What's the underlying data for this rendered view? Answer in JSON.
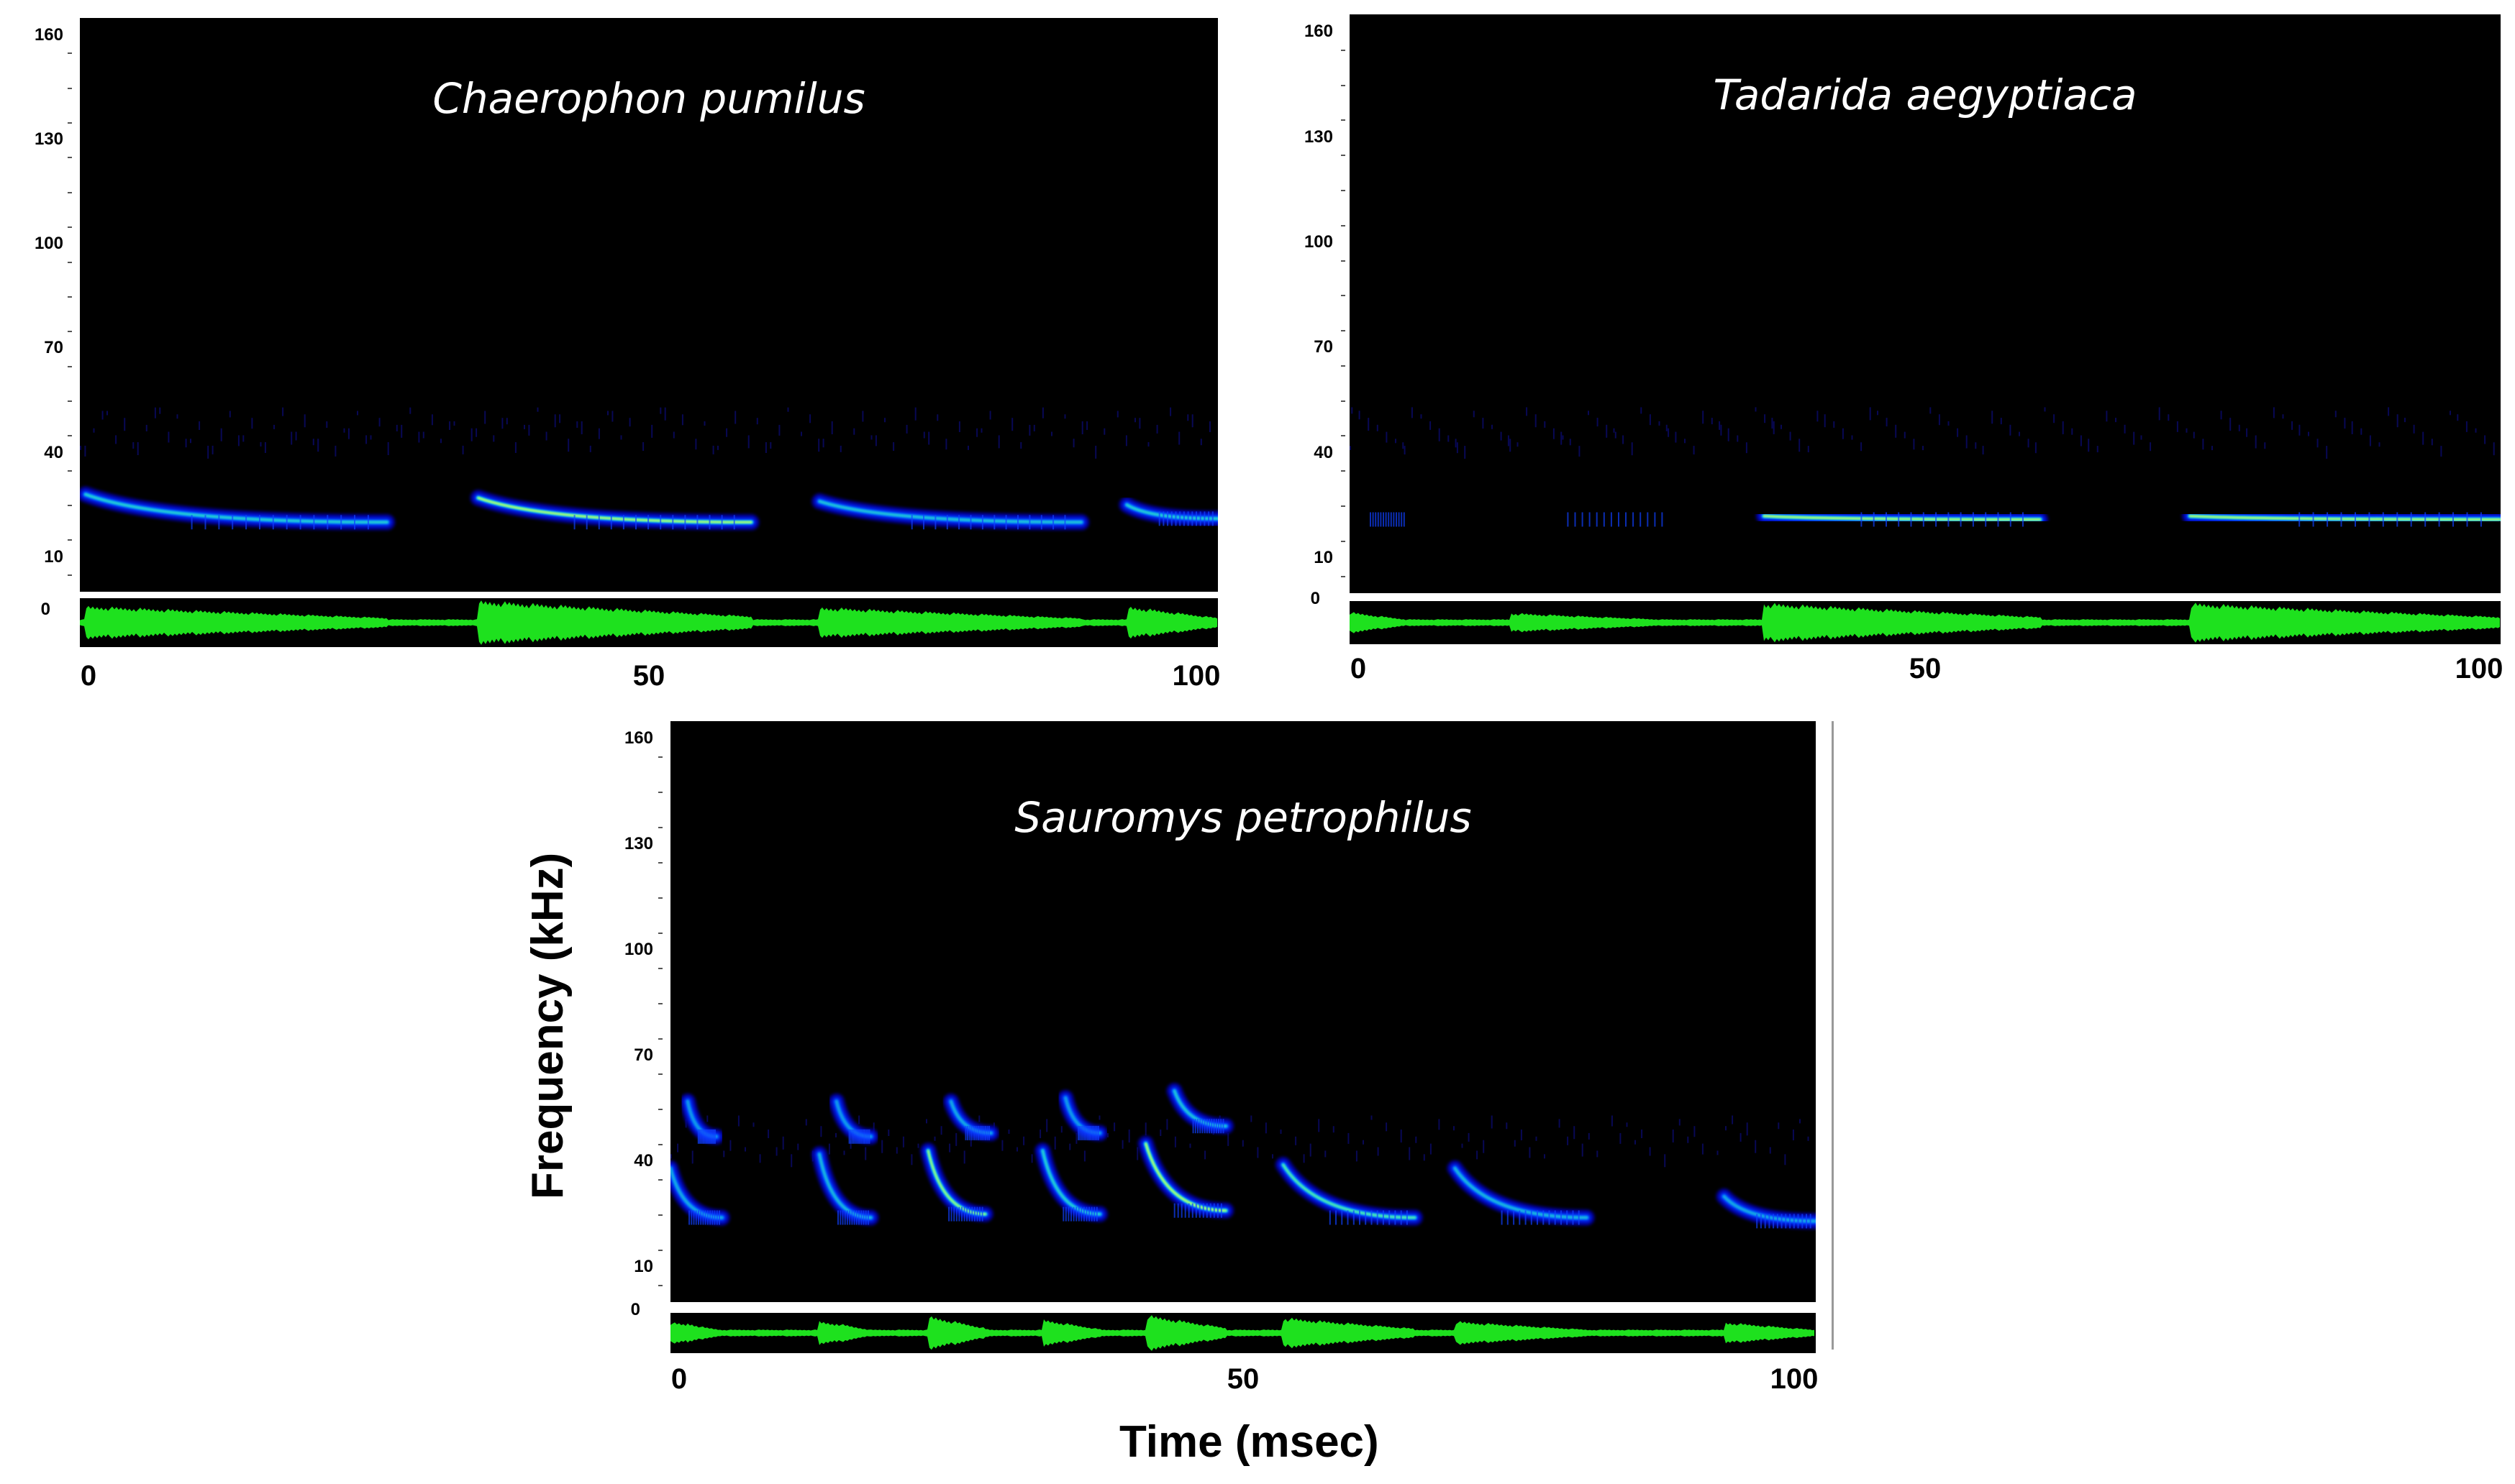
{
  "chart_data": [
    {
      "type": "heatmap",
      "title": "Chaerophon pumilus",
      "xlabel": "",
      "ylabel": "",
      "x_ticks": [
        "0",
        "50",
        "100"
      ],
      "y_ticks": [
        "10",
        "40",
        "70",
        "100",
        "130",
        "160"
      ],
      "y_zero": "0",
      "xlim": [
        0,
        100
      ],
      "ylim": [
        0,
        165
      ],
      "pulses": [
        {
          "start_ms": 0.5,
          "end_ms": 27,
          "f_start_khz": 28,
          "f_end_khz": 20
        },
        {
          "start_ms": 35,
          "end_ms": 59,
          "f_start_khz": 27,
          "f_end_khz": 20
        },
        {
          "start_ms": 65,
          "end_ms": 88,
          "f_start_khz": 26,
          "f_end_khz": 20
        },
        {
          "start_ms": 92,
          "end_ms": 100,
          "f_start_khz": 25,
          "f_end_khz": 21
        }
      ]
    },
    {
      "type": "heatmap",
      "title": "Tadarida aegyptiaca",
      "xlabel": "",
      "ylabel": "",
      "x_ticks": [
        "0",
        "50",
        "100"
      ],
      "y_ticks": [
        "10",
        "40",
        "70",
        "100",
        "130",
        "160"
      ],
      "y_zero": "0",
      "xlim": [
        0,
        100
      ],
      "ylim": [
        0,
        165
      ],
      "pulses": [
        {
          "start_ms": 0,
          "end_ms": 5,
          "f_start_khz": 21,
          "f_end_khz": 21
        },
        {
          "start_ms": 14,
          "end_ms": 28,
          "f_start_khz": 21,
          "f_end_khz": 21
        },
        {
          "start_ms": 36,
          "end_ms": 60,
          "f_start_khz": 22,
          "f_end_khz": 21
        },
        {
          "start_ms": 73,
          "end_ms": 100,
          "f_start_khz": 22,
          "f_end_khz": 21
        }
      ]
    },
    {
      "type": "heatmap",
      "title": "Sauromys petrophilus",
      "xlabel": "Time (msec)",
      "ylabel": "Frequency (kHz)",
      "x_ticks": [
        "0",
        "50",
        "100"
      ],
      "y_ticks": [
        "10",
        "40",
        "70",
        "100",
        "130",
        "160"
      ],
      "y_zero": "0",
      "xlim": [
        0,
        100
      ],
      "ylim": [
        0,
        165
      ],
      "pulses": [
        {
          "start_ms": 0,
          "end_ms": 4.5,
          "f_start_khz": 38,
          "f_end_khz": 24
        },
        {
          "start_ms": 1.5,
          "end_ms": 4,
          "f_start_khz": 57,
          "f_end_khz": 47
        },
        {
          "start_ms": 13,
          "end_ms": 17.5,
          "f_start_khz": 42,
          "f_end_khz": 24
        },
        {
          "start_ms": 14.5,
          "end_ms": 17.5,
          "f_start_khz": 57,
          "f_end_khz": 47
        },
        {
          "start_ms": 22.5,
          "end_ms": 27.5,
          "f_start_khz": 43,
          "f_end_khz": 25
        },
        {
          "start_ms": 24.5,
          "end_ms": 28,
          "f_start_khz": 57,
          "f_end_khz": 48
        },
        {
          "start_ms": 32.5,
          "end_ms": 37.5,
          "f_start_khz": 43,
          "f_end_khz": 25
        },
        {
          "start_ms": 34.5,
          "end_ms": 37.5,
          "f_start_khz": 58,
          "f_end_khz": 48
        },
        {
          "start_ms": 41.5,
          "end_ms": 48.5,
          "f_start_khz": 45,
          "f_end_khz": 26
        },
        {
          "start_ms": 44,
          "end_ms": 48.5,
          "f_start_khz": 60,
          "f_end_khz": 50
        },
        {
          "start_ms": 53.5,
          "end_ms": 65,
          "f_start_khz": 39,
          "f_end_khz": 24
        },
        {
          "start_ms": 68.5,
          "end_ms": 80,
          "f_start_khz": 38,
          "f_end_khz": 24
        },
        {
          "start_ms": 92,
          "end_ms": 100,
          "f_start_khz": 30,
          "f_end_khz": 23
        }
      ]
    }
  ]
}
